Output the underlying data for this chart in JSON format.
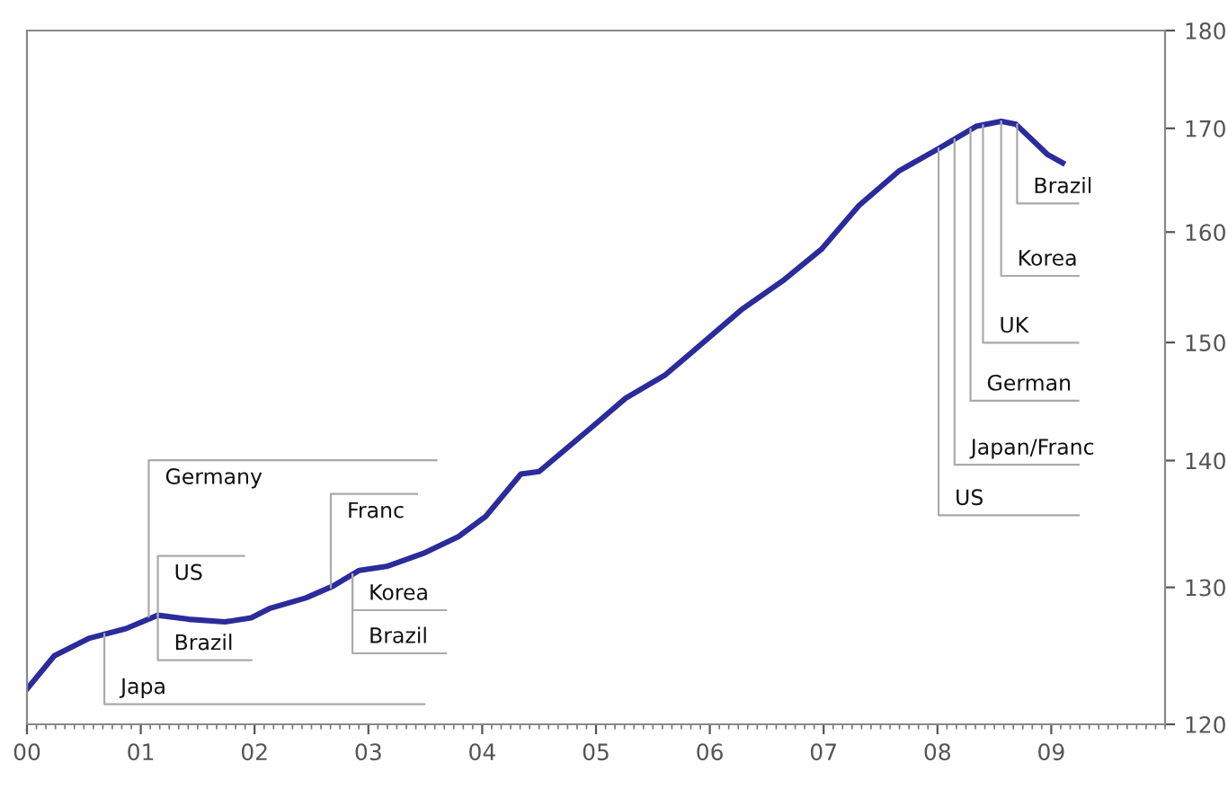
{
  "chart_data": {
    "type": "line",
    "log": "y",
    "x": [
      2000.0,
      2000.24,
      2000.55,
      2000.87,
      2001.15,
      2001.42,
      2001.74,
      2001.97,
      2002.13,
      2002.45,
      2002.69,
      2002.92,
      2003.16,
      2003.48,
      2003.79,
      2004.03,
      2004.34,
      2004.5,
      2004.98,
      2005.26,
      2005.61,
      2006.29,
      2006.64,
      2006.98,
      2007.31,
      2007.66,
      2008.01,
      2008.34,
      2008.56,
      2008.69,
      2008.97,
      2009.1
    ],
    "series": [
      {
        "color": "#2b2b9c",
        "values": [
          122.5,
          124.9,
          126.2,
          126.9,
          127.9,
          127.6,
          127.4,
          127.7,
          128.4,
          129.2,
          130.1,
          131.3,
          131.6,
          132.6,
          133.9,
          135.5,
          138.9,
          139.1,
          142.9,
          145.2,
          147.2,
          153.0,
          155.5,
          158.4,
          162.5,
          165.8,
          168.0,
          170.2,
          170.7,
          170.4,
          167.4,
          166.6
        ]
      }
    ],
    "xlim": [
      2000,
      2010
    ],
    "xticks": [
      {
        "value": 2000,
        "label": "00"
      },
      {
        "value": 2001,
        "label": "01"
      },
      {
        "value": 2002,
        "label": "02"
      },
      {
        "value": 2003,
        "label": "03"
      },
      {
        "value": 2004,
        "label": "04"
      },
      {
        "value": 2005,
        "label": "05"
      },
      {
        "value": 2006,
        "label": "06"
      },
      {
        "value": 2007,
        "label": "07"
      },
      {
        "value": 2008,
        "label": "08"
      },
      {
        "value": 2009,
        "label": "09"
      }
    ],
    "ylim": [
      120,
      180
    ],
    "yticks": [
      120,
      130,
      140,
      150,
      160,
      170,
      180
    ],
    "grid": false,
    "legend": false,
    "marker": "none",
    "line_style": "solid",
    "annotations": [
      {
        "text": "Germany",
        "x": 2001.07,
        "y": 127.8
      },
      {
        "text": "US",
        "x": 2001.15,
        "y": 127.9
      },
      {
        "text": "Brazil",
        "x": 2001.15,
        "y": 127.9
      },
      {
        "text": "Japa",
        "x": 2000.68,
        "y": 126.5
      },
      {
        "text": "Franc",
        "x": 2002.67,
        "y": 130.0
      },
      {
        "text": "Korea",
        "x": 2002.86,
        "y": 131.0
      },
      {
        "text": "Brazil",
        "x": 2002.86,
        "y": 131.0
      },
      {
        "text": "Brazil",
        "x": 2008.7,
        "y": 170.4
      },
      {
        "text": "Korea",
        "x": 2008.56,
        "y": 170.7
      },
      {
        "text": "UK",
        "x": 2008.4,
        "y": 170.3
      },
      {
        "text": "German",
        "x": 2008.29,
        "y": 169.9
      },
      {
        "text": "Japan/Franc",
        "x": 2008.15,
        "y": 168.9
      },
      {
        "text": "US",
        "x": 2008.01,
        "y": 168.0
      }
    ]
  }
}
